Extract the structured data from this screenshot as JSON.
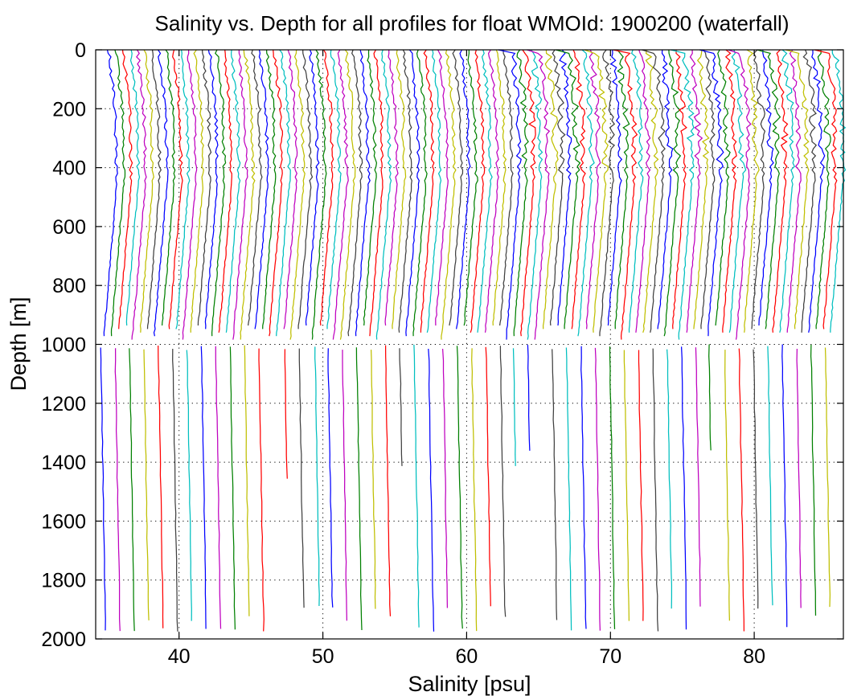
{
  "chart_data": {
    "type": "line",
    "title": "Salinity vs. Depth for all profiles for float WMOId: 1900200 (waterfall)",
    "xlabel": "Salinity [psu]",
    "ylabel": "Depth [m]",
    "xlim": [
      34.2,
      86.2
    ],
    "ylim": [
      0,
      2000
    ],
    "y_reversed": true,
    "xticks": [
      40,
      50,
      60,
      70,
      80
    ],
    "yticks": [
      0,
      200,
      400,
      600,
      800,
      1000,
      1200,
      1400,
      1600,
      1800,
      2000
    ],
    "grid": "dotted",
    "legend": "none",
    "profile_count": 102,
    "profile_offset_step": 0.5,
    "first_profile_surface_salinity": 35.1,
    "color_cycle": [
      "#0000ff",
      "#008000",
      "#ff0000",
      "#00bfbf",
      "#bf00bf",
      "#bfbf00",
      "#404040"
    ],
    "deep_profiles": [
      {
        "x": 34.9,
        "depth_end": 1975,
        "color": "#0000ff"
      },
      {
        "x": 35.9,
        "depth_end": 1975,
        "color": "#bf00bf"
      },
      {
        "x": 36.9,
        "depth_end": 1975,
        "color": "#008000"
      },
      {
        "x": 37.9,
        "depth_end": 1975,
        "color": "#bfbf00"
      },
      {
        "x": 38.9,
        "depth_end": 1975,
        "color": "#ff0000"
      },
      {
        "x": 39.9,
        "depth_end": 1975,
        "color": "#404040"
      },
      {
        "x": 40.9,
        "depth_end": 1975,
        "color": "#00bfbf"
      },
      {
        "x": 41.9,
        "depth_end": 1975,
        "color": "#0000ff"
      },
      {
        "x": 42.9,
        "depth_end": 1975,
        "color": "#bf00bf"
      },
      {
        "x": 43.9,
        "depth_end": 1975,
        "color": "#008000"
      },
      {
        "x": 44.9,
        "depth_end": 1925,
        "color": "#bfbf00"
      },
      {
        "x": 45.9,
        "depth_end": 1975,
        "color": "#ff0000"
      },
      {
        "x": 47.7,
        "depth_end": 1480,
        "color": "#ff0000"
      },
      {
        "x": 48.7,
        "depth_end": 1925,
        "color": "#404040"
      },
      {
        "x": 49.8,
        "depth_end": 1925,
        "color": "#00bfbf"
      },
      {
        "x": 50.7,
        "depth_end": 1925,
        "color": "#0000ff"
      },
      {
        "x": 51.7,
        "depth_end": 1975,
        "color": "#bf00bf"
      },
      {
        "x": 52.7,
        "depth_end": 1975,
        "color": "#008000"
      },
      {
        "x": 53.7,
        "depth_end": 1925,
        "color": "#bfbf00"
      },
      {
        "x": 54.7,
        "depth_end": 1925,
        "color": "#ff0000"
      },
      {
        "x": 55.7,
        "depth_end": 1430,
        "color": "#404040"
      },
      {
        "x": 56.7,
        "depth_end": 1975,
        "color": "#00bfbf"
      },
      {
        "x": 57.7,
        "depth_end": 1975,
        "color": "#0000ff"
      },
      {
        "x": 58.7,
        "depth_end": 1925,
        "color": "#bf00bf"
      },
      {
        "x": 59.7,
        "depth_end": 1975,
        "color": "#008000"
      },
      {
        "x": 60.7,
        "depth_end": 1975,
        "color": "#bfbf00"
      },
      {
        "x": 61.7,
        "depth_end": 1925,
        "color": "#ff0000"
      },
      {
        "x": 62.7,
        "depth_end": 1925,
        "color": "#404040"
      },
      {
        "x": 63.6,
        "depth_end": 1430,
        "color": "#00bfbf"
      },
      {
        "x": 64.6,
        "depth_end": 1380,
        "color": "#0000ff"
      },
      {
        "x": 66.3,
        "depth_end": 1975,
        "color": "#404040"
      },
      {
        "x": 67.3,
        "depth_end": 1975,
        "color": "#00bfbf"
      },
      {
        "x": 68.3,
        "depth_end": 1975,
        "color": "#0000ff"
      },
      {
        "x": 69.3,
        "depth_end": 1975,
        "color": "#bf00bf"
      },
      {
        "x": 70.3,
        "depth_end": 1975,
        "color": "#008000"
      },
      {
        "x": 71.3,
        "depth_end": 1975,
        "color": "#bfbf00"
      },
      {
        "x": 72.3,
        "depth_end": 1975,
        "color": "#ff0000"
      },
      {
        "x": 73.3,
        "depth_end": 1975,
        "color": "#404040"
      },
      {
        "x": 74.3,
        "depth_end": 1925,
        "color": "#00bfbf"
      },
      {
        "x": 75.3,
        "depth_end": 1975,
        "color": "#0000ff"
      },
      {
        "x": 76.3,
        "depth_end": 1925,
        "color": "#bf00bf"
      },
      {
        "x": 77.2,
        "depth_end": 1380,
        "color": "#008000"
      },
      {
        "x": 78.3,
        "depth_end": 1975,
        "color": "#bfbf00"
      },
      {
        "x": 79.3,
        "depth_end": 1975,
        "color": "#ff0000"
      },
      {
        "x": 80.3,
        "depth_end": 1925,
        "color": "#404040"
      },
      {
        "x": 81.3,
        "depth_end": 1925,
        "color": "#00bfbf"
      },
      {
        "x": 82.3,
        "depth_end": 1975,
        "color": "#0000ff"
      },
      {
        "x": 83.3,
        "depth_end": 1925,
        "color": "#bf00bf"
      },
      {
        "x": 84.3,
        "depth_end": 1925,
        "color": "#008000"
      },
      {
        "x": 85.3,
        "depth_end": 1900,
        "color": "#bfbf00"
      }
    ]
  }
}
